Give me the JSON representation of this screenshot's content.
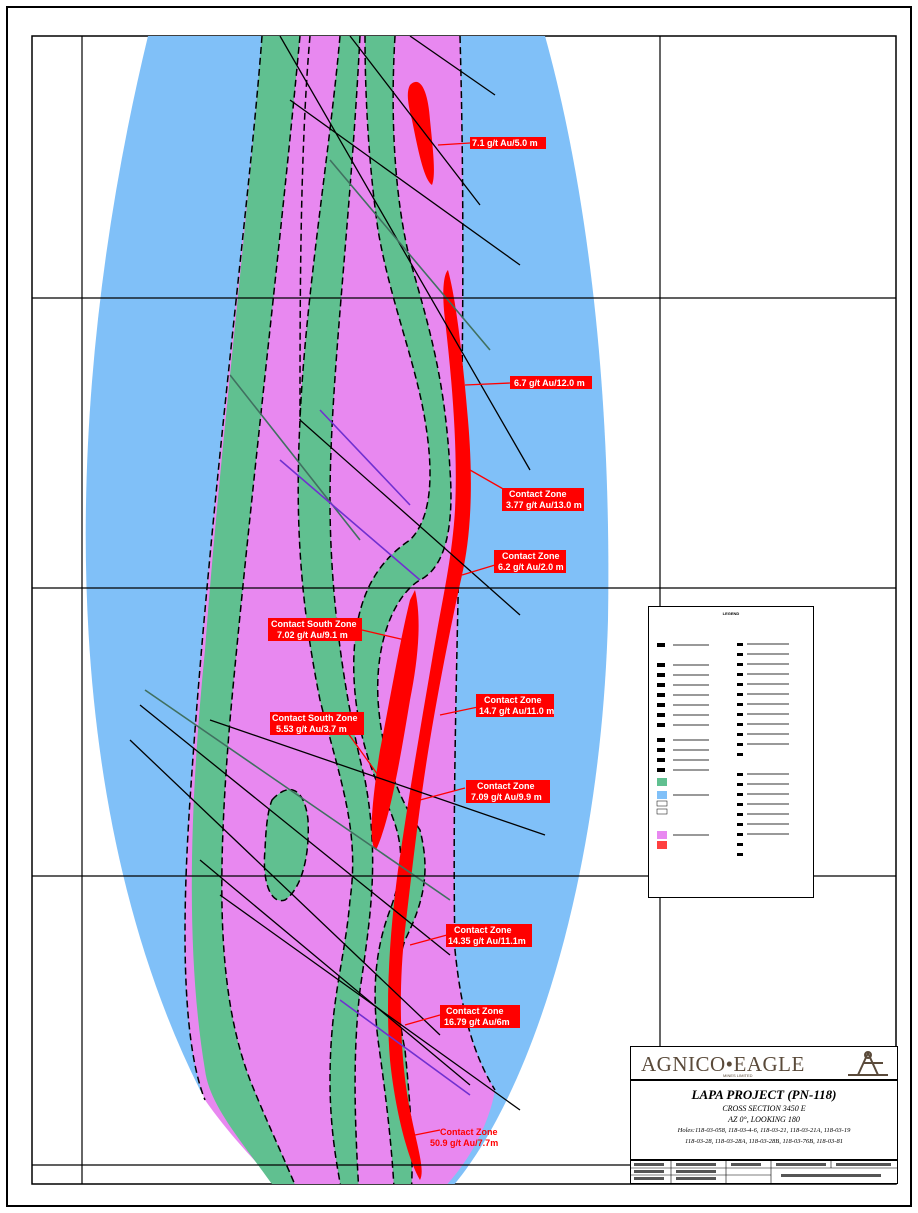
{
  "map": {
    "zones": {
      "country_rock": "#80c0f8",
      "volcanic": "#e888f0",
      "sediment": "#60c090",
      "ore": "#ff0000"
    },
    "labels": [
      {
        "id": "l1",
        "lines": [
          "7.1 g/t Au/5.0 m"
        ]
      },
      {
        "id": "l2",
        "lines": [
          "6.7 g/t Au/12.0 m"
        ]
      },
      {
        "id": "l3",
        "lines": [
          "Contact Zone",
          "3.77 g/t Au/13.0 m"
        ]
      },
      {
        "id": "l4",
        "lines": [
          "Contact Zone",
          "6.2 g/t Au/2.0 m"
        ]
      },
      {
        "id": "l5",
        "lines": [
          "Contact South Zone",
          "7.02 g/t Au/9.1 m"
        ]
      },
      {
        "id": "l6",
        "lines": [
          "Contact Zone",
          "14.7 g/t Au/11.0 m"
        ]
      },
      {
        "id": "l7",
        "lines": [
          "Contact South Zone",
          "5.53 g/t Au/3.7 m"
        ]
      },
      {
        "id": "l8",
        "lines": [
          "Contact Zone",
          "7.09 g/t Au/9.9 m"
        ]
      },
      {
        "id": "l9",
        "lines": [
          "Contact Zone",
          "14.35 g/t Au/11.1m"
        ]
      },
      {
        "id": "l10",
        "lines": [
          "Contact Zone",
          "16.79 g/t Au/6m"
        ]
      },
      {
        "id": "l11",
        "lines": [
          "Contact Zone",
          "50.9 g/t Au/7.7m"
        ]
      }
    ]
  },
  "legend": {
    "title": "LEGEND"
  },
  "logo": {
    "name": "AGNICO•EAGLE",
    "sub": "MINES LIMITED",
    "icon": "headframe-icon"
  },
  "titleblock": {
    "title": "LAPA PROJECT (PN-118)",
    "lines": [
      "CROSS SECTION 3450 E",
      "AZ 0°, LOOKING 180",
      "Holes:118-03-058, 118-03-4-6, 118-03-21, 118-03-21A, 118-03-19",
      "118-03-28, 118-03-28A, 118-03-28B, 118-03-76B, 118-03-81"
    ]
  }
}
